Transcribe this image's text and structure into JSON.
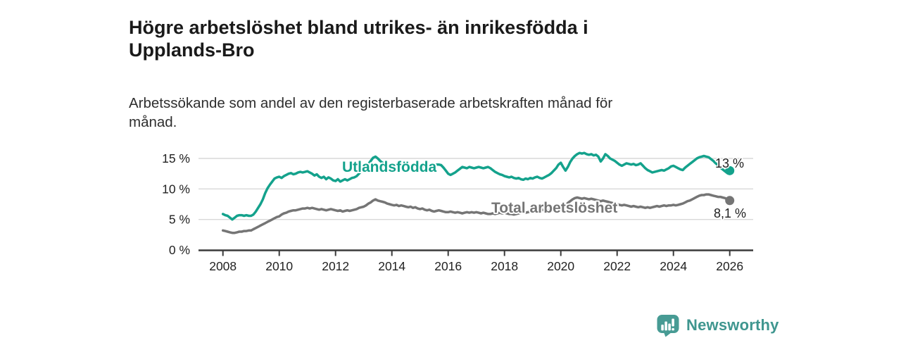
{
  "header": {
    "title_lines": [
      "Högre arbetslöshet bland utrikes- än inrikesfödda i",
      "Upplands-Bro"
    ],
    "subtitle_lines": [
      "Arbetssökande som andel av den registerbaserade arbetskraften månad för",
      "månad."
    ]
  },
  "footer": {
    "brand": "Newsworthy",
    "logo_icon": "newsworthy-speech-bubble-bar-chart-icon",
    "brand_color": "#3f968f",
    "logo_color": "#479b94"
  },
  "chart_data": {
    "type": "line",
    "title": "Högre arbetslöshet bland utrikes- än inrikesfödda i Upplands-Bro",
    "subtitle": "Arbetssökande som andel av den registerbaserade arbetskraften månad för månad.",
    "unit": "%",
    "x_start_year": 2008,
    "x_step_months": 1,
    "xlim": [
      2007.1,
      2026.85
    ],
    "ylim": [
      0,
      16
    ],
    "grid": "horizontal",
    "legend_position": "inline-labels",
    "x_ticks": [
      "2008",
      "2010",
      "2012",
      "2014",
      "2016",
      "2018",
      "2020",
      "2022",
      "2024",
      "2026"
    ],
    "y_ticks": [
      {
        "value": 0,
        "label": "0 %"
      },
      {
        "value": 5,
        "label": "5 %"
      },
      {
        "value": 10,
        "label": "10 %"
      },
      {
        "value": 15,
        "label": "15 %"
      }
    ],
    "colors": {
      "grid": "#d9d9d9",
      "axis": "#3a3a3a",
      "tick_text": "#222222"
    },
    "series": [
      {
        "name": "Utlandsfödda",
        "color": "#14a28c",
        "end_label": "13 %",
        "end_value": 13.0,
        "end_dot": true,
        "values": [
          5.9,
          5.7,
          5.6,
          5.3,
          5.0,
          5.3,
          5.6,
          5.7,
          5.7,
          5.6,
          5.7,
          5.6,
          5.6,
          5.8,
          6.3,
          6.9,
          7.5,
          8.3,
          9.3,
          10.1,
          10.7,
          11.2,
          11.7,
          11.9,
          12.0,
          11.8,
          12.1,
          12.3,
          12.5,
          12.6,
          12.4,
          12.5,
          12.7,
          12.8,
          12.7,
          12.8,
          12.9,
          12.7,
          12.5,
          12.2,
          12.4,
          12.0,
          11.8,
          12.0,
          11.6,
          11.9,
          11.7,
          11.4,
          11.3,
          11.6,
          11.2,
          11.4,
          11.6,
          11.4,
          11.6,
          11.8,
          11.9,
          12.1,
          12.5,
          12.9,
          13.3,
          13.7,
          14.1,
          14.6,
          15.1,
          15.3,
          15.0,
          14.6,
          14.3,
          14.1,
          14.0,
          13.9,
          14.0,
          13.9,
          13.8,
          13.9,
          13.7,
          13.8,
          13.9,
          13.8,
          13.7,
          13.8,
          13.9,
          13.8,
          13.9,
          13.8,
          13.7,
          13.8,
          13.9,
          14.0,
          13.9,
          14.0,
          14.0,
          13.9,
          13.5,
          13.0,
          12.5,
          12.3,
          12.5,
          12.7,
          13.0,
          13.3,
          13.6,
          13.5,
          13.4,
          13.6,
          13.5,
          13.4,
          13.5,
          13.6,
          13.5,
          13.4,
          13.5,
          13.6,
          13.4,
          13.1,
          12.8,
          12.6,
          12.4,
          12.3,
          12.1,
          12.0,
          11.9,
          12.0,
          11.8,
          11.7,
          11.8,
          11.6,
          11.5,
          11.7,
          11.6,
          11.8,
          11.7,
          11.9,
          12.0,
          11.8,
          11.7,
          11.9,
          12.1,
          12.3,
          12.6,
          13.0,
          13.4,
          14.0,
          14.3,
          13.6,
          13.0,
          13.6,
          14.4,
          15.0,
          15.4,
          15.7,
          15.9,
          15.8,
          15.9,
          15.7,
          15.6,
          15.7,
          15.5,
          15.6,
          15.3,
          14.5,
          15.0,
          15.7,
          15.4,
          15.0,
          14.8,
          14.6,
          14.3,
          14.0,
          13.8,
          14.0,
          14.2,
          14.1,
          14.0,
          14.1,
          13.9,
          14.0,
          14.2,
          13.8,
          13.4,
          13.1,
          12.9,
          12.7,
          12.8,
          12.9,
          13.0,
          13.1,
          13.0,
          13.2,
          13.4,
          13.7,
          13.8,
          13.6,
          13.4,
          13.2,
          13.1,
          13.5,
          13.8,
          14.1,
          14.4,
          14.7,
          15.0,
          15.2,
          15.3,
          15.4,
          15.3,
          15.2,
          14.9,
          14.6,
          14.2,
          13.9,
          13.5,
          13.2,
          12.9,
          12.6,
          13.0
        ]
      },
      {
        "name": "Total arbetslöshet",
        "color": "#757575",
        "end_label": "8,1 %",
        "end_value": 8.1,
        "end_dot": true,
        "values": [
          3.2,
          3.1,
          3.0,
          2.9,
          2.8,
          2.8,
          2.9,
          3.0,
          3.0,
          3.1,
          3.1,
          3.2,
          3.2,
          3.4,
          3.6,
          3.8,
          4.0,
          4.2,
          4.4,
          4.6,
          4.8,
          5.0,
          5.2,
          5.4,
          5.5,
          5.8,
          6.0,
          6.1,
          6.3,
          6.4,
          6.5,
          6.5,
          6.6,
          6.7,
          6.8,
          6.8,
          6.9,
          6.8,
          6.9,
          6.8,
          6.7,
          6.6,
          6.7,
          6.6,
          6.5,
          6.6,
          6.7,
          6.6,
          6.5,
          6.4,
          6.5,
          6.3,
          6.4,
          6.5,
          6.4,
          6.5,
          6.6,
          6.7,
          6.9,
          7.0,
          7.1,
          7.3,
          7.6,
          7.8,
          8.1,
          8.3,
          8.1,
          8.0,
          7.9,
          7.8,
          7.6,
          7.5,
          7.4,
          7.3,
          7.4,
          7.2,
          7.3,
          7.2,
          7.1,
          7.0,
          7.1,
          6.9,
          7.0,
          6.8,
          6.7,
          6.8,
          6.6,
          6.5,
          6.6,
          6.4,
          6.3,
          6.4,
          6.5,
          6.4,
          6.3,
          6.2,
          6.2,
          6.3,
          6.2,
          6.1,
          6.2,
          6.1,
          6.0,
          6.1,
          6.2,
          6.1,
          6.2,
          6.1,
          6.2,
          6.1,
          6.0,
          6.1,
          6.0,
          5.9,
          5.9,
          6.0,
          5.9,
          6.0,
          6.1,
          6.0,
          6.1,
          6.0,
          5.9,
          5.9,
          5.8,
          5.9,
          6.0,
          6.1,
          6.2,
          6.1,
          6.2,
          6.3,
          6.4,
          6.5,
          6.6,
          6.5,
          6.6,
          6.5,
          6.6,
          6.5,
          6.6,
          6.7,
          6.8,
          6.9,
          7.0,
          7.1,
          7.3,
          7.7,
          8.0,
          8.3,
          8.5,
          8.6,
          8.5,
          8.4,
          8.5,
          8.4,
          8.3,
          8.4,
          8.3,
          8.2,
          8.1,
          8.0,
          8.1,
          8.0,
          7.9,
          7.8,
          7.7,
          7.6,
          7.5,
          7.4,
          7.3,
          7.4,
          7.3,
          7.2,
          7.1,
          7.2,
          7.1,
          7.0,
          7.1,
          7.0,
          6.9,
          7.0,
          6.9,
          7.0,
          7.1,
          7.2,
          7.1,
          7.2,
          7.3,
          7.2,
          7.3,
          7.3,
          7.4,
          7.3,
          7.4,
          7.5,
          7.6,
          7.8,
          8.0,
          8.1,
          8.3,
          8.5,
          8.7,
          8.9,
          9.0,
          9.0,
          9.1,
          9.1,
          9.0,
          8.9,
          8.8,
          8.7,
          8.7,
          8.6,
          8.5,
          8.3,
          8.1
        ]
      }
    ]
  }
}
